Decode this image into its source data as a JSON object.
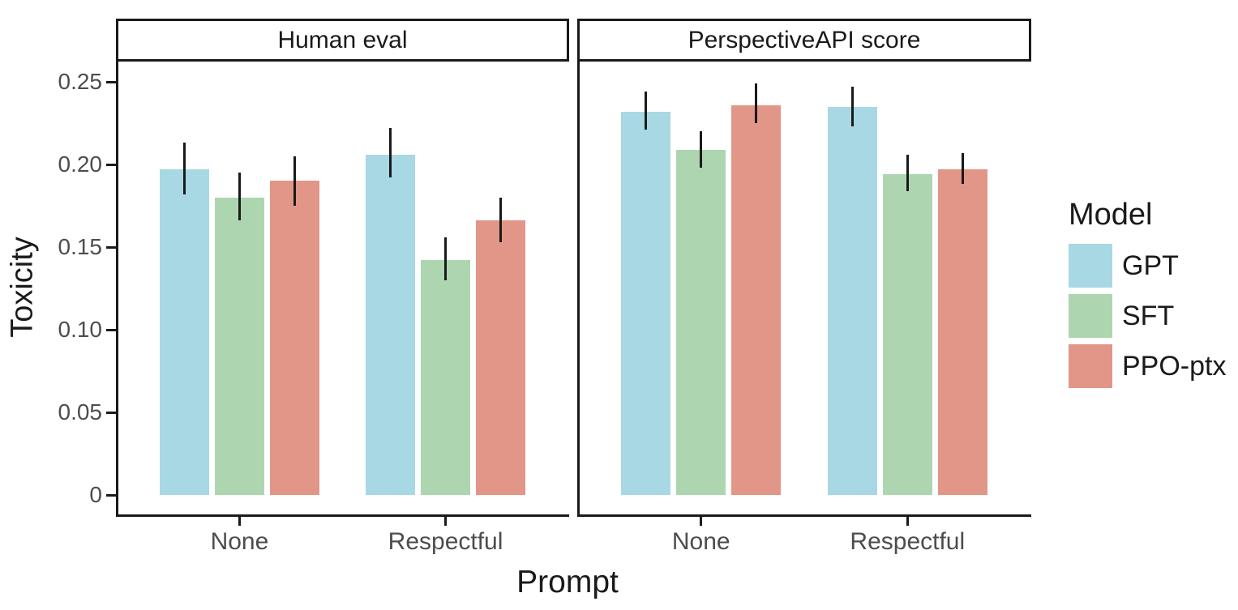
{
  "chart_data": {
    "type": "bar",
    "title": "",
    "ylabel": "Toxicity",
    "xlabel": "Prompt",
    "ylim": [
      0,
      0.27
    ],
    "grid": false,
    "legend_position": "right",
    "y_ticks": [
      0,
      0.05,
      0.1,
      0.15,
      0.2,
      0.25
    ],
    "y_tick_labels": [
      "0",
      "0.05",
      "0.10",
      "0.15",
      "0.20",
      "0.25"
    ],
    "categories": [
      "None",
      "Respectful"
    ],
    "legend": {
      "title": "Model",
      "entries": [
        {
          "label": "GPT",
          "color": "#a7d8e3"
        },
        {
          "label": "SFT",
          "color": "#add6b0"
        },
        {
          "label": "PPO-ptx",
          "color": "#e29687"
        }
      ]
    },
    "facets": [
      {
        "label": "Human eval",
        "series": [
          {
            "name": "GPT",
            "color": "#a7d8e3",
            "values": [
              0.197,
              0.206
            ],
            "err_low": [
              0.182,
              0.192
            ],
            "err_high": [
              0.213,
              0.222
            ]
          },
          {
            "name": "SFT",
            "color": "#add6b0",
            "values": [
              0.18,
              0.142
            ],
            "err_low": [
              0.166,
              0.13
            ],
            "err_high": [
              0.195,
              0.156
            ]
          },
          {
            "name": "PPO-ptx",
            "color": "#e29687",
            "values": [
              0.19,
              0.166
            ],
            "err_low": [
              0.175,
              0.153
            ],
            "err_high": [
              0.205,
              0.18
            ]
          }
        ]
      },
      {
        "label": "PerspectiveAPI score",
        "series": [
          {
            "name": "GPT",
            "color": "#a7d8e3",
            "values": [
              0.232,
              0.235
            ],
            "err_low": [
              0.221,
              0.223
            ],
            "err_high": [
              0.244,
              0.247
            ]
          },
          {
            "name": "SFT",
            "color": "#add6b0",
            "values": [
              0.209,
              0.194
            ],
            "err_low": [
              0.198,
              0.184
            ],
            "err_high": [
              0.22,
              0.206
            ]
          },
          {
            "name": "PPO-ptx",
            "color": "#e29687",
            "values": [
              0.236,
              0.197
            ],
            "err_low": [
              0.225,
              0.188
            ],
            "err_high": [
              0.249,
              0.207
            ]
          }
        ]
      }
    ]
  }
}
